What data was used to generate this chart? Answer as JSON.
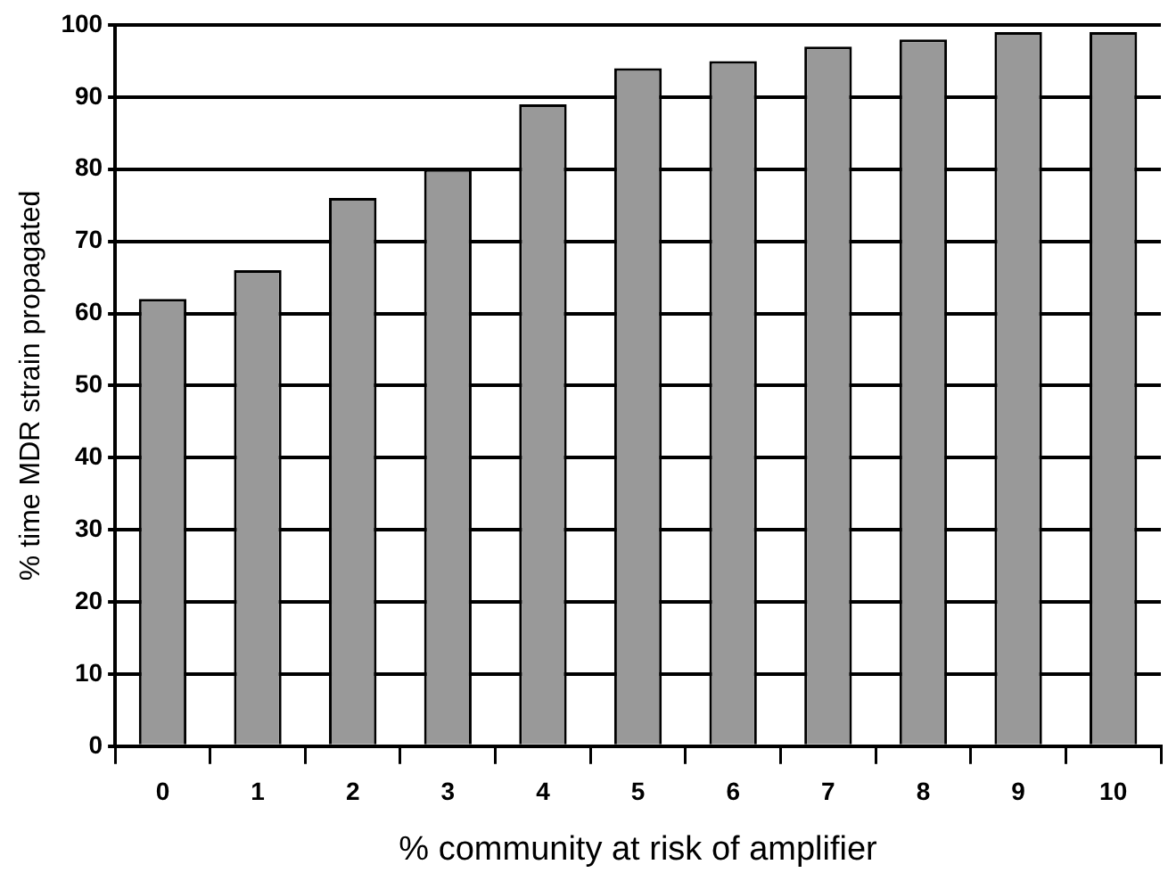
{
  "chart_data": {
    "type": "bar",
    "xlabel": "% community at risk of amplifier",
    "ylabel": "% time MDR strain propagated",
    "categories": [
      "0",
      "1",
      "2",
      "3",
      "4",
      "5",
      "6",
      "7",
      "8",
      "9",
      "10"
    ],
    "values": [
      62,
      66,
      76,
      80,
      89,
      94,
      95,
      97,
      98,
      99,
      99
    ],
    "color": "#999999",
    "ylim": [
      0,
      100
    ],
    "yticks": [
      0,
      10,
      20,
      30,
      40,
      50,
      60,
      70,
      80,
      90,
      100
    ],
    "grid": "y",
    "legend": false
  }
}
